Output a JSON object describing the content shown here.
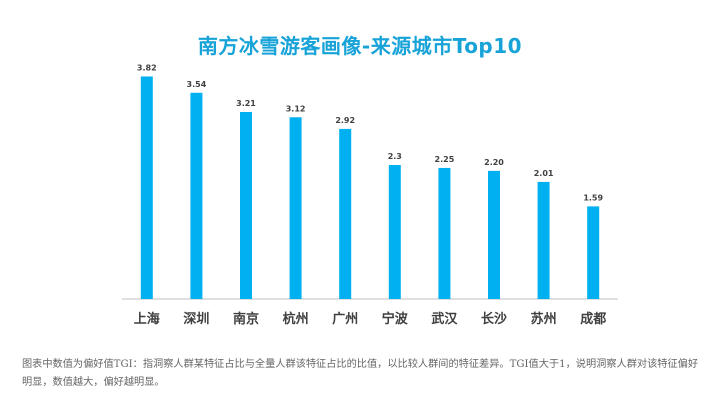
{
  "chart_data": {
    "type": "bar",
    "title": "南方冰雪游客画像-来源城市Top10",
    "categories": [
      "上海",
      "深圳",
      "南京",
      "杭州",
      "广州",
      "宁波",
      "武汉",
      "长沙",
      "苏州",
      "成都"
    ],
    "values": [
      3.82,
      3.54,
      3.21,
      3.12,
      2.92,
      2.3,
      2.25,
      2.2,
      2.01,
      1.59
    ],
    "value_labels": [
      "3.82",
      "3.54",
      "3.21",
      "3.12",
      "2.92",
      "2.3",
      "2.25",
      "2.20",
      "2.01",
      "1.59"
    ],
    "ylim": [
      0,
      4
    ],
    "grid": false,
    "legend": "none",
    "bar_color": "#00b0f0",
    "title_color": "#18a3d8"
  },
  "footnote": "图表中数值为偏好值TGI：指洞察人群某特征占比与全量人群该特征占比的比值，以比较人群间的特征差异。TGI值大于1，说明洞察人群对该特征偏好明显，数值越大，偏好越明显。"
}
